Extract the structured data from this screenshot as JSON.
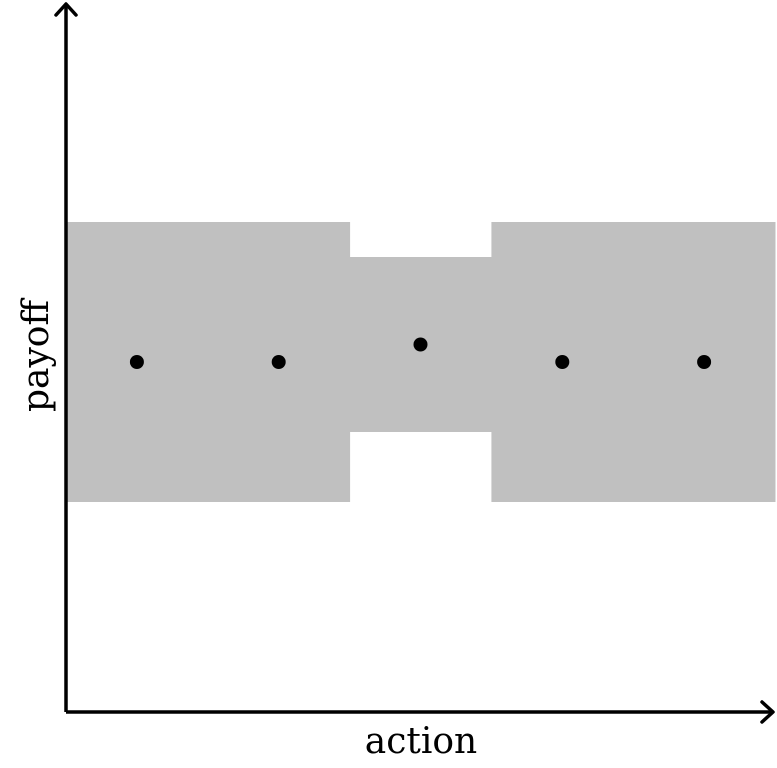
{
  "chart_data": {
    "type": "scatter",
    "xlabel": "action",
    "ylabel": "payoff",
    "xlim": [
      0,
      5
    ],
    "ylim": [
      0,
      10
    ],
    "grid": false,
    "legend": "none",
    "colors": {
      "band": "#c0c0c0",
      "point": "#000000",
      "axis": "#000000",
      "background": "#ffffff"
    },
    "bands": [
      {
        "x": [
          0,
          2
        ],
        "y": [
          3,
          7
        ]
      },
      {
        "x": [
          2,
          3
        ],
        "y": [
          4,
          6.5
        ]
      },
      {
        "x": [
          3,
          5
        ],
        "y": [
          3,
          7
        ]
      }
    ],
    "points": [
      {
        "x": 0.5,
        "y": 5
      },
      {
        "x": 1.5,
        "y": 5
      },
      {
        "x": 2.5,
        "y": 5.25
      },
      {
        "x": 3.5,
        "y": 5
      },
      {
        "x": 4.5,
        "y": 5
      }
    ]
  }
}
